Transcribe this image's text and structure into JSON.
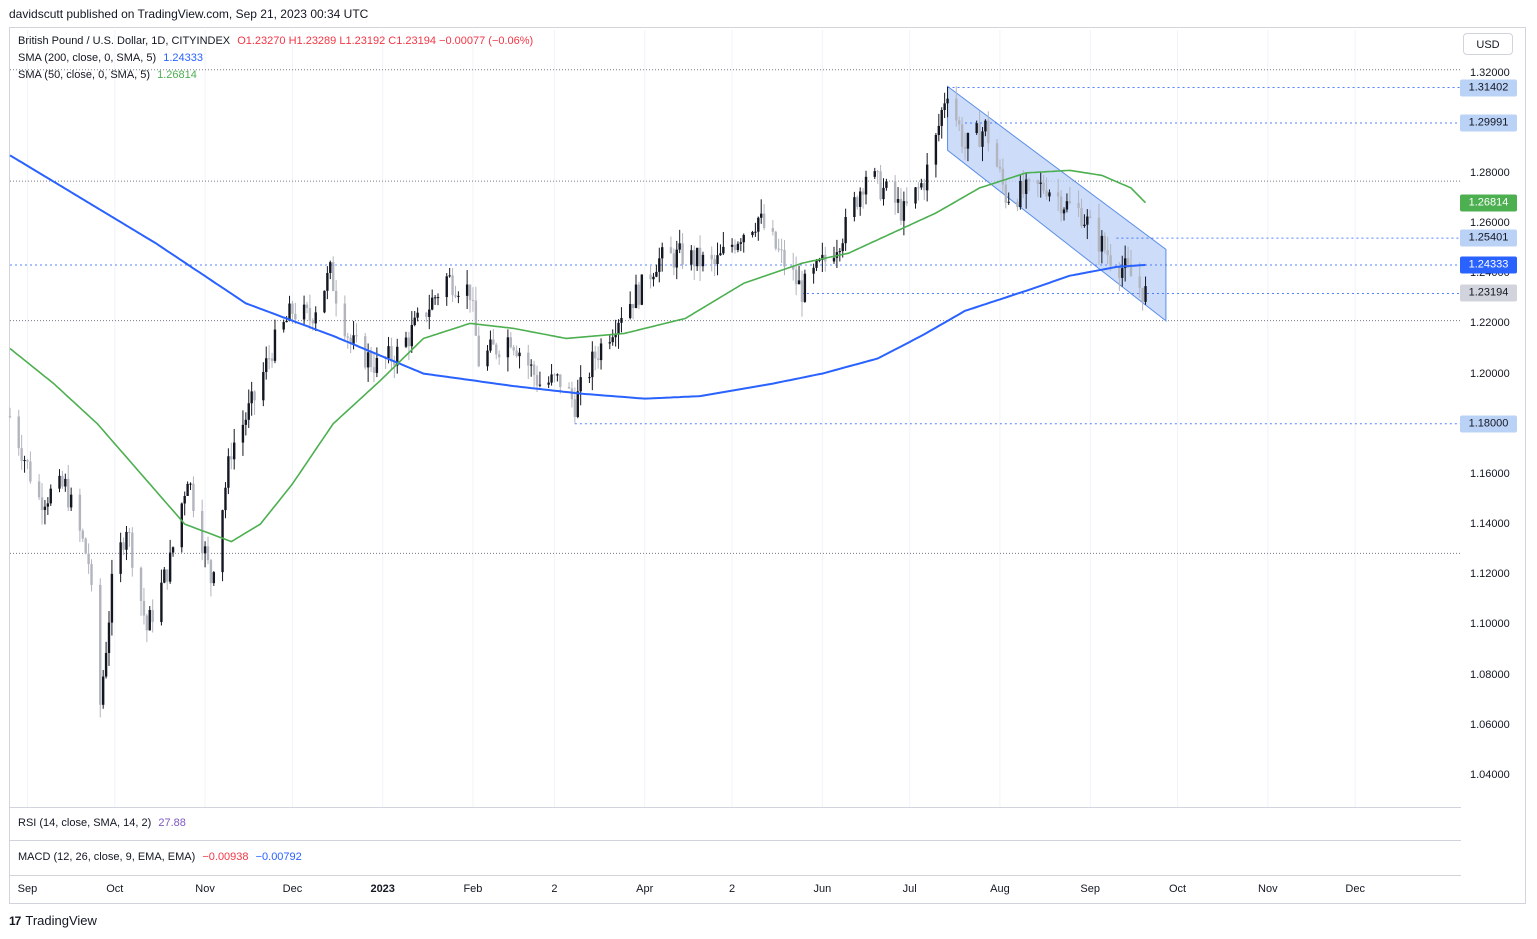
{
  "header": {
    "published": "davidscutt published on TradingView.com, Sep 21, 2023 00:34 UTC"
  },
  "legend": {
    "symbol": "British Pound / U.S. Dollar, 1D, CITYINDEX",
    "ohlc": "O1.23270  H1.23289  L1.23192  C1.23194  −0.00077 (−0.06%)",
    "sma200_label": "SMA (200, close, 0, SMA, 5)",
    "sma200_value": "1.24333",
    "sma50_label": "SMA (50, close, 0, SMA, 5)",
    "sma50_value": "1.26814",
    "rsi_label": "RSI (14, close, SMA, 14, 2)",
    "rsi_value": "27.88",
    "macd_label": "MACD (12, 26, close, 9, EMA, EMA)",
    "macd_value": "−0.00938",
    "macd_signal": "−0.00792"
  },
  "currency": "USD",
  "footer": {
    "brand": "TradingView",
    "logo": "17"
  },
  "colors": {
    "sma200": "#2962ff",
    "sma50": "#4caf50",
    "channel_fill": "#bbd0f7",
    "channel_edge": "#5b8ee8",
    "candle_up": "#131722",
    "candle_down": "#b2b5be",
    "level_line": "#2962ff",
    "ohlc_text": "#f23645"
  },
  "chart_data": {
    "type": "candlestick",
    "title": "British Pound / U.S. Dollar, 1D, CITYINDEX",
    "ylim": [
      1.03,
      1.325
    ],
    "ytick_labels": [
      "1.32000",
      "1.30000",
      "1.28000",
      "1.26000",
      "1.24000",
      "1.22000",
      "1.20000",
      "1.18000",
      "1.16000",
      "1.14000",
      "1.12000",
      "1.10000",
      "1.08000",
      "1.06000",
      "1.04000"
    ],
    "y_ticks": [
      1.32,
      1.3,
      1.28,
      1.26,
      1.24,
      1.22,
      1.2,
      1.18,
      1.16,
      1.14,
      1.12,
      1.1,
      1.08,
      1.06,
      1.04
    ],
    "x_months": [
      {
        "label": "Sep",
        "date": "2022-09-01"
      },
      {
        "label": "Oct",
        "date": "2022-10-01"
      },
      {
        "label": "Nov",
        "date": "2022-11-01"
      },
      {
        "label": "Dec",
        "date": "2022-12-01"
      },
      {
        "label": "2023",
        "date": "2023-01-01"
      },
      {
        "label": "Feb",
        "date": "2023-02-01"
      },
      {
        "label": "2",
        "date": "2023-03-01"
      },
      {
        "label": "Apr",
        "date": "2023-04-01"
      },
      {
        "label": "2",
        "date": "2023-05-01"
      },
      {
        "label": "Jun",
        "date": "2023-06-01"
      },
      {
        "label": "Jul",
        "date": "2023-07-01"
      },
      {
        "label": "Aug",
        "date": "2023-08-01"
      },
      {
        "label": "Sep",
        "date": "2023-09-01"
      },
      {
        "label": "Oct",
        "date": "2023-10-01"
      },
      {
        "label": "Nov",
        "date": "2023-11-01"
      },
      {
        "label": "Dec",
        "date": "2023-12-01"
      }
    ],
    "xlim": [
      "2022-08-26",
      "2024-01-06"
    ],
    "close_keypoints": [
      [
        "2022-08-26",
        1.183
      ],
      [
        "2022-09-05",
        1.15
      ],
      [
        "2022-09-14",
        1.155
      ],
      [
        "2022-09-22",
        1.125
      ],
      [
        "2022-09-26",
        1.068
      ],
      [
        "2022-09-30",
        1.115
      ],
      [
        "2022-10-05",
        1.14
      ],
      [
        "2022-10-12",
        1.098
      ],
      [
        "2022-10-20",
        1.125
      ],
      [
        "2022-10-26",
        1.16
      ],
      [
        "2022-11-03",
        1.118
      ],
      [
        "2022-11-10",
        1.17
      ],
      [
        "2022-11-18",
        1.19
      ],
      [
        "2022-11-24",
        1.21
      ],
      [
        "2022-12-01",
        1.225
      ],
      [
        "2022-12-07",
        1.222
      ],
      [
        "2022-12-14",
        1.24
      ],
      [
        "2022-12-21",
        1.212
      ],
      [
        "2022-12-30",
        1.203
      ],
      [
        "2023-01-06",
        1.208
      ],
      [
        "2023-01-13",
        1.22
      ],
      [
        "2023-01-23",
        1.238
      ],
      [
        "2023-01-31",
        1.233
      ],
      [
        "2023-02-03",
        1.205
      ],
      [
        "2023-02-14",
        1.215
      ],
      [
        "2023-02-24",
        1.196
      ],
      [
        "2023-03-03",
        1.197
      ],
      [
        "2023-03-08",
        1.188
      ],
      [
        "2023-03-15",
        1.207
      ],
      [
        "2023-03-24",
        1.225
      ],
      [
        "2023-03-31",
        1.234
      ],
      [
        "2023-04-05",
        1.245
      ],
      [
        "2023-04-14",
        1.247
      ],
      [
        "2023-04-25",
        1.243
      ],
      [
        "2023-05-04",
        1.256
      ],
      [
        "2023-05-10",
        1.262
      ],
      [
        "2023-05-17",
        1.248
      ],
      [
        "2023-05-25",
        1.233
      ],
      [
        "2023-06-02",
        1.245
      ],
      [
        "2023-06-09",
        1.258
      ],
      [
        "2023-06-16",
        1.28
      ],
      [
        "2023-06-23",
        1.272
      ],
      [
        "2023-06-29",
        1.264
      ],
      [
        "2023-07-06",
        1.277
      ],
      [
        "2023-07-10",
        1.293
      ],
      [
        "2023-07-13",
        1.31
      ],
      [
        "2023-07-14",
        1.314
      ],
      [
        "2023-07-20",
        1.29
      ],
      [
        "2023-07-27",
        1.298
      ],
      [
        "2023-08-03",
        1.271
      ],
      [
        "2023-08-10",
        1.272
      ],
      [
        "2023-08-17",
        1.275
      ],
      [
        "2023-08-24",
        1.267
      ],
      [
        "2023-08-29",
        1.264
      ],
      [
        "2023-09-01",
        1.258
      ],
      [
        "2023-09-07",
        1.248
      ],
      [
        "2023-09-14",
        1.24
      ],
      [
        "2023-09-20",
        1.2319
      ]
    ],
    "sma200_keypoints": [
      [
        "2022-08-26",
        1.287
      ],
      [
        "2022-09-15",
        1.273
      ],
      [
        "2022-10-15",
        1.252
      ],
      [
        "2022-11-15",
        1.228
      ],
      [
        "2022-12-15",
        1.215
      ],
      [
        "2023-01-15",
        1.2
      ],
      [
        "2023-02-15",
        1.195
      ],
      [
        "2023-03-10",
        1.192
      ],
      [
        "2023-04-01",
        1.19
      ],
      [
        "2023-04-20",
        1.191
      ],
      [
        "2023-05-15",
        1.196
      ],
      [
        "2023-06-01",
        1.2
      ],
      [
        "2023-06-20",
        1.206
      ],
      [
        "2023-07-05",
        1.215
      ],
      [
        "2023-07-20",
        1.225
      ],
      [
        "2023-08-10",
        1.233
      ],
      [
        "2023-08-25",
        1.239
      ],
      [
        "2023-09-10",
        1.2425
      ],
      [
        "2023-09-20",
        1.2433
      ]
    ],
    "sma50_keypoints": [
      [
        "2022-08-26",
        1.21
      ],
      [
        "2022-09-10",
        1.196
      ],
      [
        "2022-09-25",
        1.18
      ],
      [
        "2022-10-10",
        1.16
      ],
      [
        "2022-10-25",
        1.14
      ],
      [
        "2022-11-10",
        1.133
      ],
      [
        "2022-11-20",
        1.14
      ],
      [
        "2022-12-01",
        1.156
      ],
      [
        "2022-12-15",
        1.18
      ],
      [
        "2022-12-31",
        1.197
      ],
      [
        "2023-01-15",
        1.214
      ],
      [
        "2023-01-31",
        1.22
      ],
      [
        "2023-02-15",
        1.218
      ],
      [
        "2023-03-05",
        1.214
      ],
      [
        "2023-03-25",
        1.216
      ],
      [
        "2023-04-15",
        1.222
      ],
      [
        "2023-05-05",
        1.236
      ],
      [
        "2023-05-25",
        1.244
      ],
      [
        "2023-06-10",
        1.248
      ],
      [
        "2023-06-25",
        1.256
      ],
      [
        "2023-07-10",
        1.264
      ],
      [
        "2023-07-25",
        1.274
      ],
      [
        "2023-08-10",
        1.28
      ],
      [
        "2023-08-25",
        1.281
      ],
      [
        "2023-09-05",
        1.279
      ],
      [
        "2023-09-15",
        1.274
      ],
      [
        "2023-09-20",
        1.2681
      ]
    ],
    "channel": {
      "upper": [
        [
          "2023-07-14",
          1.3145
        ],
        [
          "2023-09-27",
          1.2495
        ]
      ],
      "lower": [
        [
          "2023-07-14",
          1.289
        ],
        [
          "2023-09-27",
          1.221
        ]
      ]
    },
    "levels": [
      {
        "value": 1.31402,
        "label": "1.31402",
        "from": "2023-07-14"
      },
      {
        "value": 1.29991,
        "label": "1.29991",
        "from": "2023-07-20"
      },
      {
        "value": 1.25401,
        "label": "1.25401",
        "from": "2023-09-10"
      },
      {
        "value": 1.2319,
        "label": "1.23194",
        "from": "2023-05-25"
      },
      {
        "value": 1.18,
        "label": "1.18000",
        "from": "2023-03-08"
      },
      {
        "value": 1.2433,
        "label": "1.24333",
        "from": "2022-08-26"
      }
    ],
    "gray_levels": [
      1.3211,
      1.2767,
      1.2211,
      1.1283
    ],
    "price_badges": [
      {
        "value": 1.31402,
        "label": "1.31402",
        "style": "level"
      },
      {
        "value": 1.29991,
        "label": "1.29991",
        "style": "level"
      },
      {
        "value": 1.26814,
        "label": "1.26814",
        "style": "sma50"
      },
      {
        "value": 1.25401,
        "label": "1.25401",
        "style": "level"
      },
      {
        "value": 1.24333,
        "label": "1.24333",
        "style": "sma200"
      },
      {
        "value": 1.23194,
        "label": "1.23194",
        "style": "last"
      },
      {
        "value": 1.18,
        "label": "1.18000",
        "style": "level"
      }
    ]
  }
}
